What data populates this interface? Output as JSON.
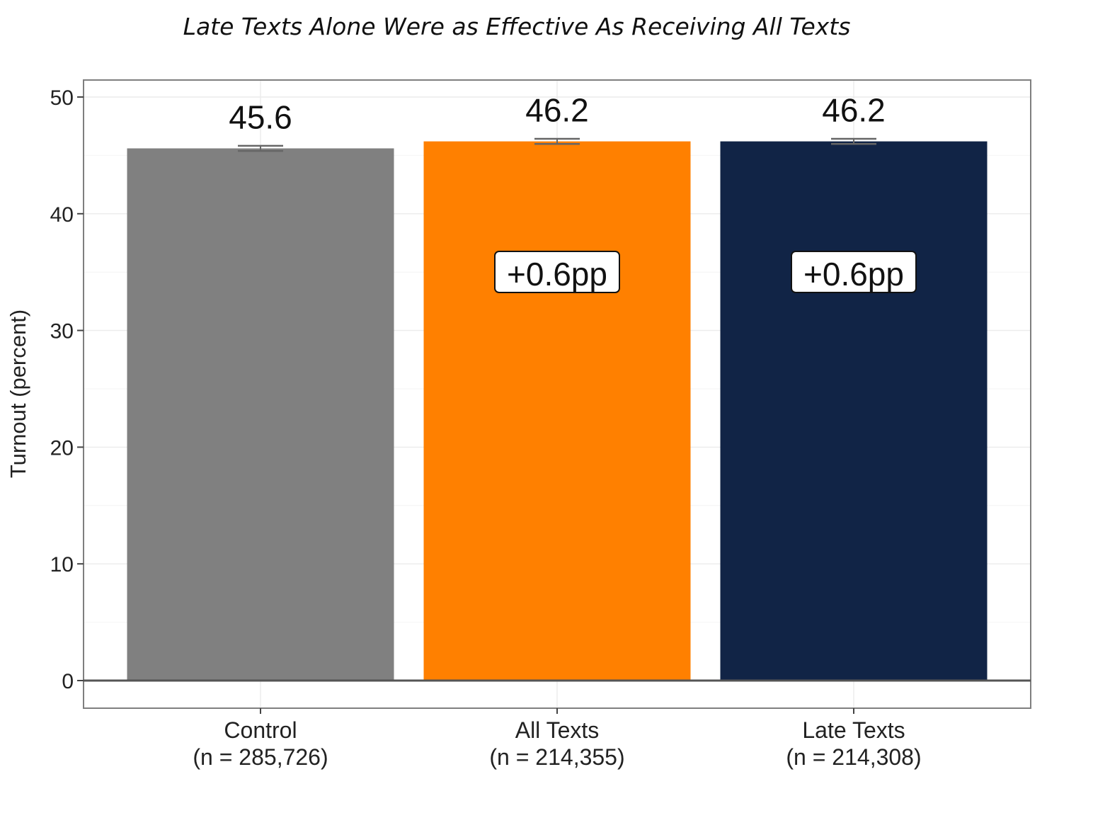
{
  "chart_data": {
    "type": "bar",
    "title": "Late Texts Alone Were as Effective As Receiving All Texts",
    "xlabel": "",
    "ylabel": "Turnout (percent)",
    "ylim": [
      0,
      51.5
    ],
    "yticks": [
      0,
      10,
      20,
      30,
      40,
      50
    ],
    "grid": true,
    "categories": [
      {
        "name": "Control",
        "n_label": "(n = 285,726)"
      },
      {
        "name": "All Texts",
        "n_label": "(n = 214,355)"
      },
      {
        "name": "Late Texts",
        "n_label": "(n = 214,308)"
      }
    ],
    "values": [
      45.6,
      46.2,
      46.2
    ],
    "value_labels": [
      "45.6",
      "46.2",
      "46.2"
    ],
    "error_bars": [
      0.1,
      0.1,
      0.1
    ],
    "colors": [
      "#808080",
      "#ff8000",
      "#112446"
    ],
    "annotations": [
      null,
      "+0.6pp",
      "+0.6pp"
    ]
  }
}
